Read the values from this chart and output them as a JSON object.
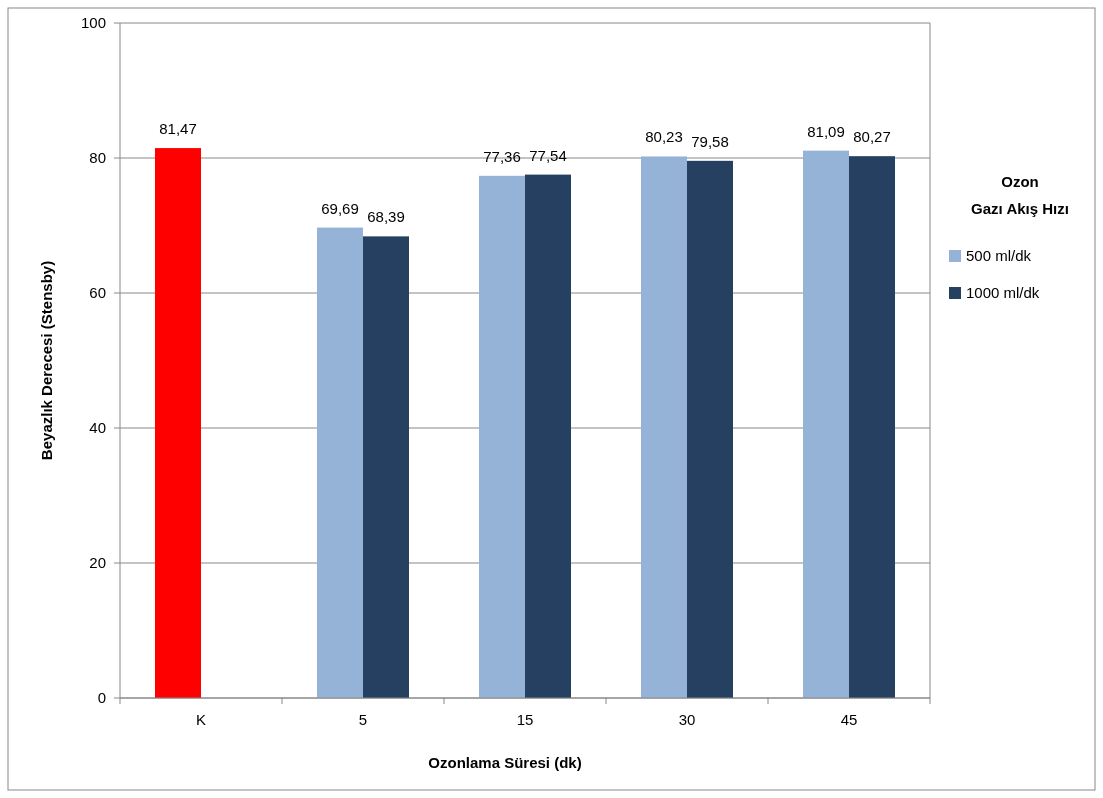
{
  "chart_data": {
    "type": "bar",
    "xlabel": "Ozonlama Süresi (dk)",
    "ylabel": "Beyazlık Derecesi (Stensby)",
    "legend_title": "Ozon Gazı Akış Hızı",
    "categories": [
      "K",
      "5",
      "15",
      "30",
      "45"
    ],
    "series": [
      {
        "name": "500 ml/dk",
        "color": "#95b3d7",
        "colors": [
          "#ff0000",
          "#95b3d7",
          "#95b3d7",
          "#95b3d7",
          "#95b3d7"
        ],
        "values": [
          81.47,
          69.69,
          77.36,
          80.23,
          81.09
        ],
        "value_labels": [
          "81,47",
          "69,69",
          "77,36",
          "80,23",
          "81,09"
        ]
      },
      {
        "name": "1000 ml/dk",
        "color": "#254061",
        "values": [
          null,
          68.39,
          77.54,
          79.58,
          80.27
        ],
        "value_labels": [
          null,
          "68,39",
          "77,54",
          "79,58",
          "80,27"
        ]
      }
    ],
    "ylim": [
      0,
      100
    ],
    "yticks": [
      0,
      20,
      40,
      60,
      80,
      100
    ],
    "grid": "y",
    "legend": "right"
  }
}
